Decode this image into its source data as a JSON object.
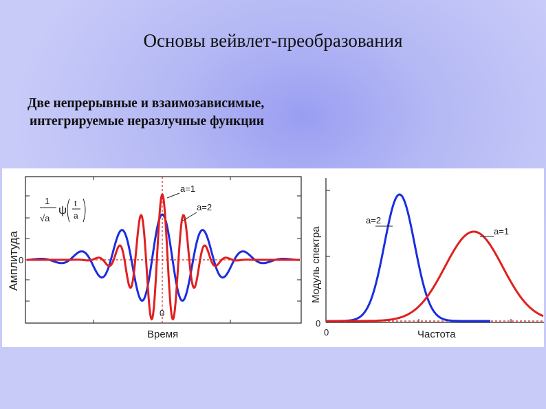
{
  "slide": {
    "title": "Основы вейвлет-преобразования",
    "subtitle_line1": "Две непрерывные и взаимозависимые,",
    "subtitle_line2": "интегрируемые неразлучные функции"
  },
  "left_plot": {
    "ylabel": "Амплитуда",
    "xlabel": "Время",
    "zero_y": "0",
    "zero_x": "0",
    "formula_prefix": "1",
    "formula_sqrt": "√a",
    "formula_psi": "ψ",
    "formula_t": "t",
    "formula_a": "a",
    "label_a1": "a=1",
    "label_a2": "a=2"
  },
  "right_plot": {
    "ylabel": "Модуль спектра",
    "xlabel": "Частота",
    "zero_y": "0",
    "zero_x": "0",
    "label_a1": "a=1",
    "label_a2": "a=2"
  },
  "colors": {
    "a1_curve": "#e02020",
    "a2_curve": "#1a2ee0"
  },
  "icons": {
    "formula": "wavelet-formula-icon"
  }
}
